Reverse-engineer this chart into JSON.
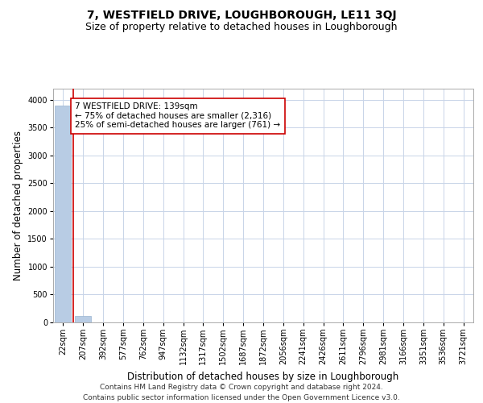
{
  "title": "7, WESTFIELD DRIVE, LOUGHBOROUGH, LE11 3QJ",
  "subtitle": "Size of property relative to detached houses in Loughborough",
  "xlabel": "Distribution of detached houses by size in Loughborough",
  "ylabel": "Number of detached properties",
  "footer_line1": "Contains HM Land Registry data © Crown copyright and database right 2024.",
  "footer_line2": "Contains public sector information licensed under the Open Government Licence v3.0.",
  "categories": [
    "22sqm",
    "207sqm",
    "392sqm",
    "577sqm",
    "762sqm",
    "947sqm",
    "1132sqm",
    "1317sqm",
    "1502sqm",
    "1687sqm",
    "1872sqm",
    "2056sqm",
    "2241sqm",
    "2426sqm",
    "2611sqm",
    "2796sqm",
    "2981sqm",
    "3166sqm",
    "3351sqm",
    "3536sqm",
    "3721sqm"
  ],
  "values": [
    3900,
    120,
    0,
    0,
    0,
    0,
    0,
    0,
    0,
    0,
    0,
    0,
    0,
    0,
    0,
    0,
    0,
    0,
    0,
    0,
    0
  ],
  "bar_color": "#b8cce4",
  "bar_edge_color": "#9ab4d0",
  "red_line_x": 0.5,
  "annotation_text": "7 WESTFIELD DRIVE: 139sqm\n← 75% of detached houses are smaller (2,316)\n25% of semi-detached houses are larger (761) →",
  "ylim": [
    0,
    4200
  ],
  "yticks": [
    0,
    500,
    1000,
    1500,
    2000,
    2500,
    3000,
    3500,
    4000
  ],
  "background_color": "#ffffff",
  "grid_color": "#c8d4e8",
  "red_line_color": "#cc0000",
  "title_fontsize": 10,
  "subtitle_fontsize": 9,
  "axis_label_fontsize": 8.5,
  "tick_fontsize": 7,
  "annotation_fontsize": 7.5,
  "footer_fontsize": 6.5
}
